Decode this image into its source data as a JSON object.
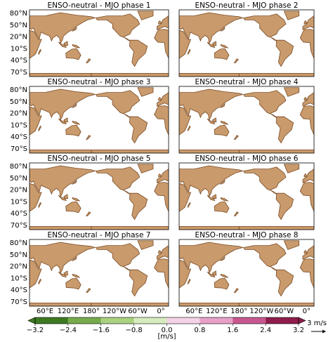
{
  "panels": [
    {
      "title": "ENSO-neutral - MJO phase 1"
    },
    {
      "title": "ENSO-neutral - MJO phase 2"
    },
    {
      "title": "ENSO-neutral - MJO phase 3"
    },
    {
      "title": "ENSO-neutral - MJO phase 4"
    },
    {
      "title": "ENSO-neutral - MJO phase 5"
    },
    {
      "title": "ENSO-neutral - MJO phase 6"
    },
    {
      "title": "ENSO-neutral - MJO phase 7"
    },
    {
      "title": "ENSO-neutral - MJO phase 8"
    }
  ],
  "lat_labels": [
    "80°N",
    "50°N",
    "20°N",
    "10°S",
    "40°S",
    "70°S"
  ],
  "lon_labels": [
    "60°E",
    "120°E",
    "180°",
    "120°W",
    "60°W",
    "0°"
  ],
  "colorbar": {
    "ticks": [
      {
        "value": -3.2,
        "label": "−3.2"
      },
      {
        "value": -2.4,
        "label": "−2.4"
      },
      {
        "value": -1.6,
        "label": "−1.6"
      },
      {
        "value": -0.8,
        "label": "−0.8"
      },
      {
        "value": 0,
        "label": "0.0"
      },
      0.8,
      1.6,
      2.4,
      3.2
    ],
    "colors": [
      "#3e7a22",
      "#76ab4c",
      "#a9d17f",
      "#d7ecbe",
      "#f5d3e6",
      "#e7a0c7",
      "#c8578f",
      "#8e1d4c"
    ],
    "label": "[m/s]"
  },
  "quiver_key": "3 m/s"
}
